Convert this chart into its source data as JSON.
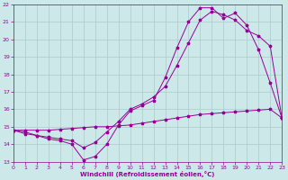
{
  "background_color": "#cce8e8",
  "grid_color": "#aacccc",
  "line_color": "#990099",
  "xlabel": "Windchill (Refroidissement éolien,°C)",
  "xlim": [
    0,
    23
  ],
  "ylim": [
    13,
    22
  ],
  "series1_x": [
    0,
    1,
    2,
    3,
    4,
    5,
    6,
    7,
    8,
    9,
    10,
    11,
    12,
    13,
    14,
    15,
    16,
    17,
    18,
    19,
    20,
    21,
    22,
    23
  ],
  "series1_y": [
    14.8,
    14.7,
    14.5,
    14.3,
    14.2,
    14.0,
    13.1,
    13.3,
    14.0,
    15.1,
    15.9,
    16.2,
    16.5,
    17.8,
    19.5,
    21.0,
    21.8,
    21.8,
    21.2,
    21.5,
    20.8,
    19.4,
    17.5,
    15.5
  ],
  "series2_x": [
    0,
    1,
    2,
    3,
    4,
    5,
    6,
    7,
    8,
    9,
    10,
    11,
    12,
    13,
    14,
    15,
    16,
    17,
    18,
    19,
    20,
    21,
    22,
    23
  ],
  "series2_y": [
    14.8,
    14.6,
    14.5,
    14.4,
    14.3,
    14.2,
    13.8,
    14.1,
    14.7,
    15.3,
    16.0,
    16.3,
    16.7,
    17.3,
    18.5,
    19.8,
    21.1,
    21.6,
    21.4,
    21.1,
    20.5,
    20.2,
    19.6,
    15.5
  ],
  "series3_x": [
    0,
    1,
    2,
    3,
    4,
    5,
    6,
    7,
    8,
    9,
    10,
    11,
    12,
    13,
    14,
    15,
    16,
    17,
    18,
    19,
    20,
    21,
    22,
    23
  ],
  "series3_y": [
    14.8,
    14.8,
    14.8,
    14.8,
    14.85,
    14.9,
    14.95,
    15.0,
    15.0,
    15.05,
    15.1,
    15.2,
    15.3,
    15.4,
    15.5,
    15.6,
    15.7,
    15.75,
    15.8,
    15.85,
    15.9,
    15.95,
    16.0,
    15.5
  ],
  "marker": "*",
  "marker_size": 2.5,
  "linewidth": 0.7
}
